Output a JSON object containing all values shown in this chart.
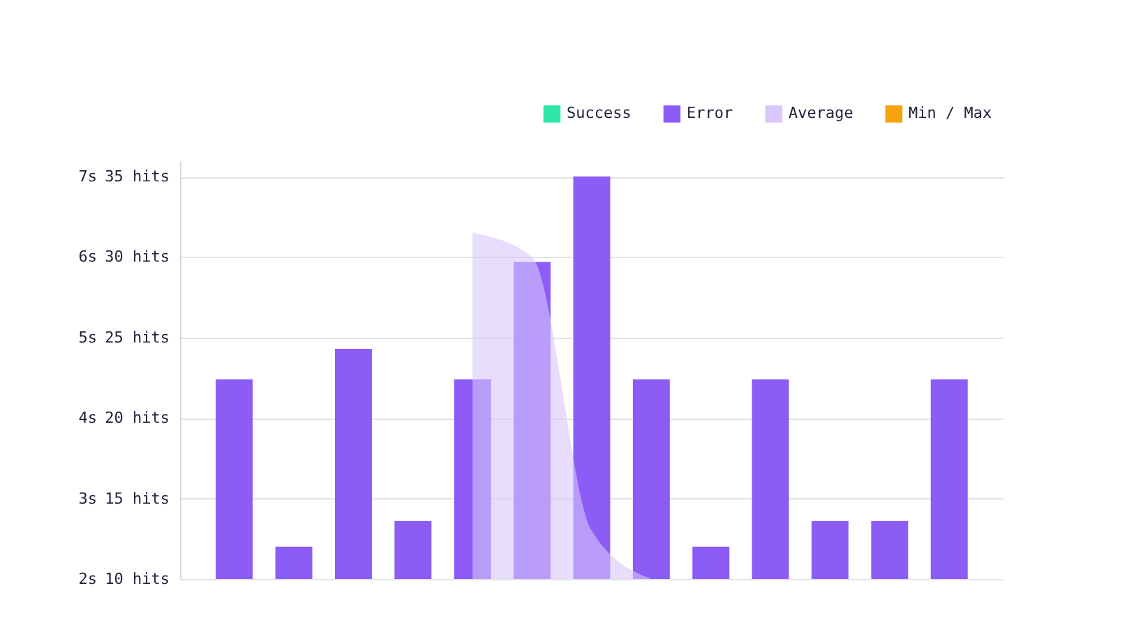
{
  "chart_data": {
    "type": "bar",
    "categories": [
      null,
      null,
      null,
      null,
      null,
      null,
      null,
      null,
      null,
      null,
      null,
      null,
      null
    ],
    "series": [
      {
        "name": "Success",
        "color": "#2ee6a8",
        "values": [
          null,
          null,
          null,
          null,
          null,
          null,
          null,
          null,
          null,
          null,
          null,
          null,
          null
        ]
      },
      {
        "name": "Error",
        "color": "#8b5cf6",
        "values": [
          22.4,
          12,
          24.3,
          13.6,
          22.4,
          29.7,
          35,
          22.4,
          12,
          22.4,
          13.6,
          13.6,
          22.4
        ]
      },
      {
        "name": "Average",
        "color": "#d9c6fc",
        "type": "area",
        "axis": "y2",
        "values": [
          null,
          null,
          null,
          null,
          6.3,
          6.0,
          2.6,
          2.0,
          null,
          null,
          null,
          null,
          null
        ]
      },
      {
        "name": "Min / Max",
        "color": "#f5a30a",
        "values": [
          null,
          null,
          null,
          null,
          null,
          null,
          null,
          null,
          null,
          null,
          null,
          null,
          null
        ]
      }
    ],
    "ylim": [
      10,
      36
    ],
    "yticks": [
      {
        "value": 10,
        "label": "10 hits"
      },
      {
        "value": 15,
        "label": "15 hits"
      },
      {
        "value": 20,
        "label": "20 hits"
      },
      {
        "value": 25,
        "label": "25 hits"
      },
      {
        "value": 30,
        "label": "30 hits"
      },
      {
        "value": 35,
        "label": "35 hits"
      }
    ],
    "y2lim": [
      2,
      7.2
    ],
    "y2ticks": [
      {
        "value": 2,
        "label": "2s"
      },
      {
        "value": 3,
        "label": "3s"
      },
      {
        "value": 4,
        "label": "4s"
      },
      {
        "value": 5,
        "label": "5s"
      },
      {
        "value": 6,
        "label": "6s"
      },
      {
        "value": 7,
        "label": "7s"
      }
    ],
    "grid": "y",
    "legend": "top right"
  }
}
